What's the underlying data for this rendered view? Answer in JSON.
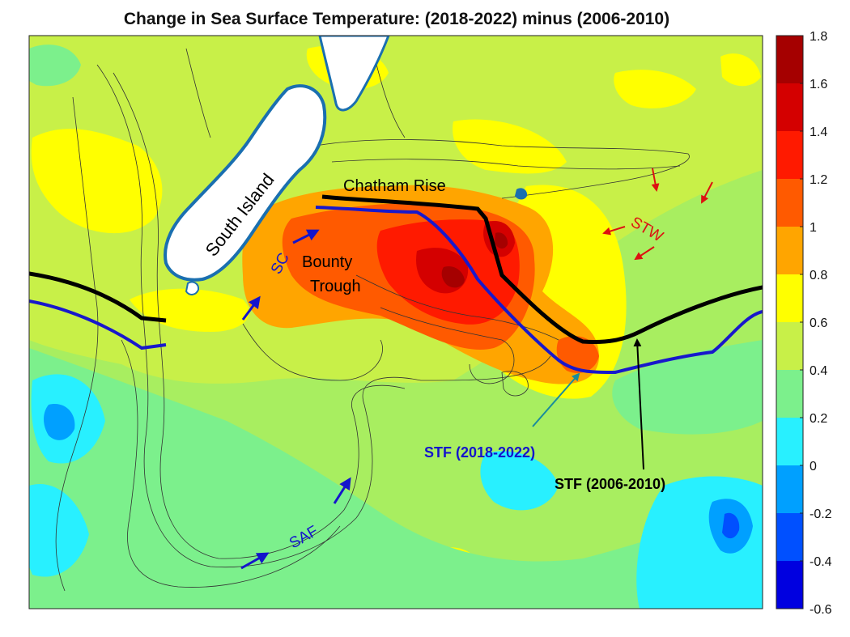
{
  "title": "Change in Sea Surface Temperature: (2018-2022) minus (2006-2010)",
  "colorbar": {
    "tick_labels": [
      "1.8",
      "1.6",
      "1.4",
      "1.2",
      "1",
      "0.8",
      "0.6",
      "0.4",
      "0.2",
      "0",
      "-0.2",
      "-0.4",
      "-0.6"
    ],
    "colors": [
      "#a50000",
      "#d40000",
      "#ff1a00",
      "#ff5a00",
      "#ffa500",
      "#ffff00",
      "#c8f048",
      "#7cf08c",
      "#28f0ff",
      "#00a0ff",
      "#0050ff",
      "#0000e0",
      "#000096"
    ]
  },
  "labels": {
    "south_island": "South Island",
    "chatham_rise": "Chatham Rise",
    "bounty": "Bounty",
    "trough": "Trough",
    "sc": "SC",
    "saf": "SAF",
    "stw": "STW",
    "stf_new": "STF (2018-2022)",
    "stf_old": "STF (2006-2010)"
  },
  "legend_colors": {
    "stf_new": "#1818cc",
    "stf_old": "#000000",
    "stw_arrows": "#dd1111",
    "current_arrows": "#1414cc",
    "land": "#ffffff",
    "coast": "#1a6fb0"
  }
}
